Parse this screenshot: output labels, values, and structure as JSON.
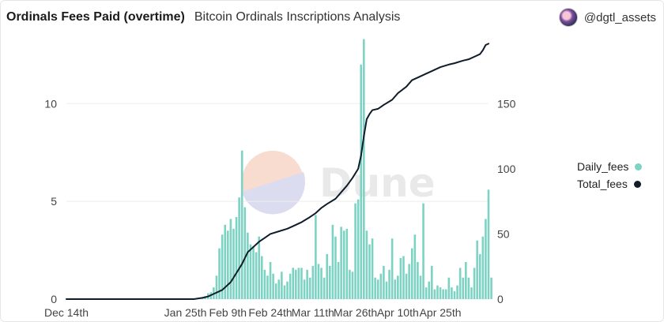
{
  "header": {
    "title": "Ordinals Fees Paid (overtime)",
    "subtitle": "Bitcoin Ordinals Inscriptions Analysis",
    "author": "@dgtl_assets"
  },
  "watermark": "Dune",
  "colors": {
    "bars": "#7dd3c3",
    "line": "#0f1c2a",
    "grid": "#eeeeee"
  },
  "legend": [
    {
      "label": "Daily_fees",
      "color": "#7dd3c3"
    },
    {
      "label": "Total_fees",
      "color": "#0f1c2a"
    }
  ],
  "chart_data": {
    "type": "bar+line",
    "title": "Ordinals Fees Paid (overtime)",
    "x_tick_labels": [
      "Dec 14th",
      "Jan 25th",
      "Feb 9th",
      "Feb 24th",
      "Mar 11th",
      "Mar 26th",
      "Apr 10th",
      "Apr 25th"
    ],
    "x_ticks_day_index": [
      0,
      42,
      57,
      72,
      87,
      102,
      117,
      132
    ],
    "start_date": "Dec 14th",
    "y_left": {
      "ticks": [
        0,
        5,
        10
      ],
      "range": [
        0,
        13
      ]
    },
    "y_right": {
      "ticks": [
        0,
        50,
        100,
        150
      ],
      "range": [
        0,
        195
      ]
    },
    "series": [
      {
        "name": "Daily_fees",
        "type": "bar",
        "axis": "left",
        "start_index": 45,
        "values": [
          0.02,
          0.03,
          0.05,
          0.1,
          0.15,
          0.3,
          0.35,
          0.6,
          1.2,
          2.6,
          3.3,
          3.8,
          3.5,
          4.1,
          3.6,
          4.2,
          5.2,
          7.6,
          4.7,
          3.4,
          2.8,
          2.7,
          2.4,
          3.2,
          2.2,
          1.5,
          1.2,
          1.9,
          1.3,
          0.8,
          1.0,
          1.4,
          0.7,
          0.9,
          1.3,
          1.6,
          1.5,
          1.6,
          1.6,
          1.0,
          1.5,
          1.1,
          1.7,
          4.3,
          1.8,
          1.6,
          1.1,
          2.3,
          1.7,
          3.8,
          3.2,
          1.9,
          3.7,
          3.5,
          3.6,
          1.5,
          1.4,
          4.9,
          5.1,
          12.0,
          13.3,
          3.5,
          2.8,
          3.1,
          1.1,
          1.0,
          1.3,
          1.7,
          0.9,
          1.5,
          3.1,
          1.0,
          1.2,
          2.1,
          2.2,
          1.3,
          1.8,
          2.6,
          3.3,
          1.9,
          1.2,
          4.9,
          0.6,
          0.9,
          1.7,
          0.5,
          0.7,
          0.6,
          0.5,
          0.5,
          1.1,
          0.6,
          0.4,
          0.7,
          1.6,
          1.1,
          1.9,
          1.1,
          0.6,
          1.6,
          3.0,
          2.3,
          3.2,
          4.1,
          5.6,
          1.1
        ]
      },
      {
        "name": "Total_fees",
        "type": "line",
        "axis": "right",
        "points": [
          [
            0,
            0
          ],
          [
            38,
            0
          ],
          [
            42,
            0
          ],
          [
            45,
            0
          ],
          [
            48,
            1
          ],
          [
            50,
            2
          ],
          [
            52,
            4
          ],
          [
            55,
            7
          ],
          [
            58,
            13
          ],
          [
            60,
            20
          ],
          [
            62,
            27
          ],
          [
            64,
            36
          ],
          [
            66,
            40
          ],
          [
            68,
            44
          ],
          [
            70,
            47
          ],
          [
            72,
            50
          ],
          [
            75,
            52
          ],
          [
            78,
            54
          ],
          [
            80,
            56
          ],
          [
            83,
            59
          ],
          [
            86,
            63
          ],
          [
            88,
            66
          ],
          [
            90,
            70
          ],
          [
            92,
            73
          ],
          [
            95,
            77
          ],
          [
            97,
            82
          ],
          [
            99,
            87
          ],
          [
            101,
            93
          ],
          [
            103,
            100
          ],
          [
            104,
            110
          ],
          [
            105,
            125
          ],
          [
            106,
            138
          ],
          [
            107,
            142
          ],
          [
            108,
            145
          ],
          [
            110,
            146
          ],
          [
            112,
            149
          ],
          [
            115,
            153
          ],
          [
            117,
            158
          ],
          [
            120,
            163
          ],
          [
            122,
            168
          ],
          [
            124,
            170
          ],
          [
            127,
            173
          ],
          [
            129,
            175
          ],
          [
            132,
            178
          ],
          [
            135,
            180
          ],
          [
            137,
            181
          ],
          [
            140,
            183
          ],
          [
            142,
            184
          ],
          [
            144,
            186
          ],
          [
            146,
            188
          ],
          [
            147,
            191
          ],
          [
            148,
            195
          ],
          [
            149,
            196
          ]
        ]
      }
    ]
  }
}
